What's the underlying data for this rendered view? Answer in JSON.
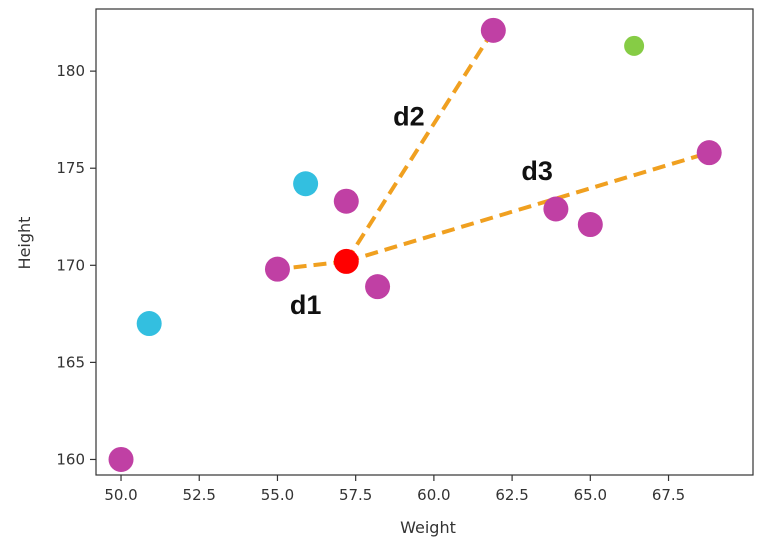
{
  "chart_data": {
    "type": "scatter",
    "title": "",
    "xlabel": "Weight",
    "ylabel": "Height",
    "xlim": [
      49.2,
      70.2
    ],
    "ylim": [
      159.2,
      183.2
    ],
    "x_ticks": [
      50.0,
      52.5,
      55.0,
      57.5,
      60.0,
      62.5,
      65.0,
      67.5
    ],
    "x_tick_labels": [
      "50.0",
      "52.5",
      "55.0",
      "57.5",
      "60.0",
      "62.5",
      "65.0",
      "67.5"
    ],
    "y_ticks": [
      160,
      165,
      170,
      175,
      180
    ],
    "y_tick_labels": [
      "160",
      "165",
      "170",
      "175",
      "180"
    ],
    "grid": false,
    "series": [
      {
        "color": "#c040a4",
        "marker_size": "large",
        "points": [
          {
            "x": 50.0,
            "y": 160.0
          },
          {
            "x": 55.0,
            "y": 169.8
          },
          {
            "x": 57.2,
            "y": 173.3
          },
          {
            "x": 58.2,
            "y": 168.9
          },
          {
            "x": 61.9,
            "y": 182.1
          },
          {
            "x": 63.9,
            "y": 172.9
          },
          {
            "x": 65.0,
            "y": 172.1
          },
          {
            "x": 68.8,
            "y": 175.8
          }
        ]
      },
      {
        "color": "#33bfe0",
        "marker_size": "large",
        "points": [
          {
            "x": 50.9,
            "y": 167.0
          },
          {
            "x": 55.9,
            "y": 174.2
          }
        ]
      },
      {
        "color": "#86cc45",
        "marker_size": "small",
        "points": [
          {
            "x": 66.4,
            "y": 181.3
          }
        ]
      },
      {
        "color": "#ff0000",
        "marker_size": "large",
        "points": [
          {
            "x": 57.2,
            "y": 170.2
          }
        ]
      }
    ],
    "distance_lines": {
      "color": "#f0a020",
      "style": "dashed",
      "origin": {
        "x": 57.2,
        "y": 170.2
      },
      "targets": [
        {
          "label": "d1",
          "x": 55.0,
          "y": 169.8,
          "label_pos": {
            "x": 55.9,
            "y": 167.5
          }
        },
        {
          "label": "d2",
          "x": 61.9,
          "y": 182.1,
          "label_pos": {
            "x": 59.2,
            "y": 177.2
          }
        },
        {
          "label": "d3",
          "x": 68.8,
          "y": 175.8,
          "label_pos": {
            "x": 63.3,
            "y": 174.4
          }
        }
      ]
    }
  }
}
